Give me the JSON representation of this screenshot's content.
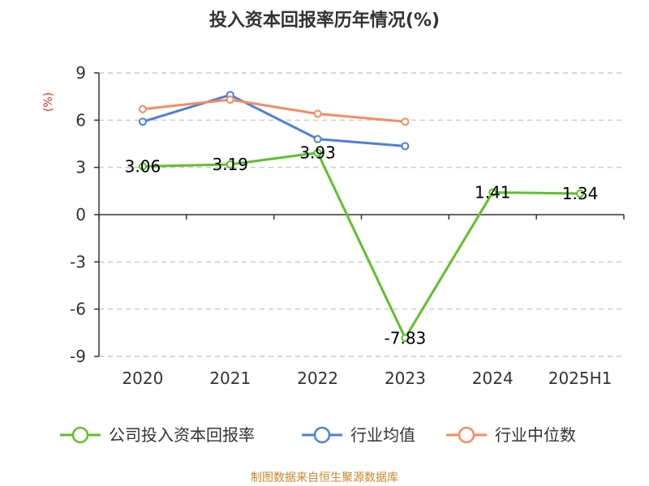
{
  "chart_data": {
    "type": "line",
    "title": "投入资本回报率历年情况(%)",
    "ylabel": "(%)",
    "categories": [
      "2020",
      "2021",
      "2022",
      "2023",
      "2024",
      "2025H1"
    ],
    "yticks": [
      "9",
      "6",
      "3",
      "0",
      "-3",
      "-6",
      "-9"
    ],
    "ylim": [
      -9,
      9
    ],
    "grid": "horizontal dashed",
    "legend_position": "bottom",
    "series": [
      {
        "name": "公司投入资本回报率",
        "color": "#5ec12c",
        "values": [
          3.06,
          3.19,
          3.93,
          -7.83,
          1.41,
          1.34
        ],
        "labels": [
          "3.06",
          "3.19",
          "3.93",
          "-7.83",
          "1.41",
          "1.34"
        ]
      },
      {
        "name": "行业均值",
        "color": "#4f7fdb",
        "values": [
          5.9,
          7.6,
          4.8,
          4.35,
          null,
          null
        ]
      },
      {
        "name": "行业中位数",
        "color": "#f58c5f",
        "values": [
          6.7,
          7.3,
          6.4,
          5.9,
          null,
          null
        ]
      }
    ]
  },
  "source": "制图数据来自恒生聚源数据库"
}
